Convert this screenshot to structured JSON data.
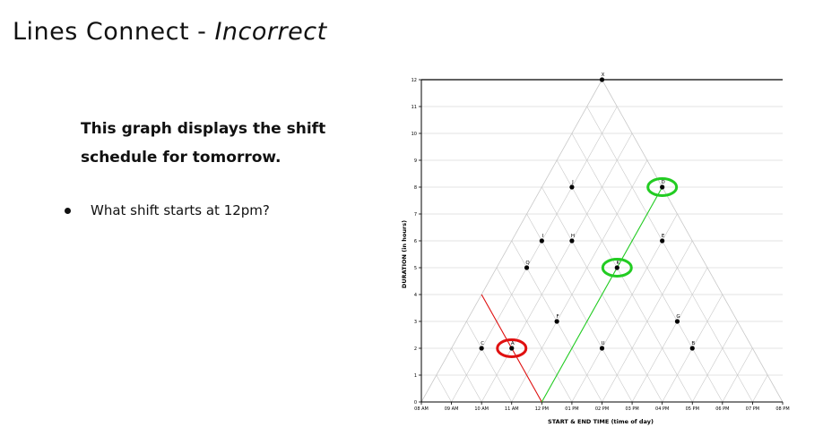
{
  "slide": {
    "title_main": "Lines Connect - ",
    "title_emph": "Incorrect",
    "description": "This graph displays the shift schedule for tomorrow.",
    "bullet": "What shift starts at 12pm?"
  },
  "colors": {
    "highlight_red": "#e01010",
    "highlight_green": "#22cc22",
    "grid": "#c8c8c8",
    "axis": "#000000"
  },
  "chart_data": {
    "type": "scatter",
    "xlabel": "START & END TIME (time of day)",
    "ylabel": "DURATION (in hours)",
    "x_ticks": [
      "08 AM",
      "09 AM",
      "10 AM",
      "11 AM",
      "12 PM",
      "01 PM",
      "02 PM",
      "03 PM",
      "04 PM",
      "05 PM",
      "06 PM",
      "07 PM",
      "08 PM"
    ],
    "y_ticks": [
      "0",
      "1",
      "2",
      "3",
      "4",
      "5",
      "6",
      "7",
      "8",
      "9",
      "10",
      "11",
      "12"
    ],
    "xlim": [
      8,
      20
    ],
    "ylim": [
      0,
      12
    ],
    "points": [
      {
        "label": "X",
        "x": 14,
        "y": 12
      },
      {
        "label": "J",
        "x": 13,
        "y": 8
      },
      {
        "label": "D",
        "x": 16,
        "y": 8
      },
      {
        "label": "I",
        "x": 12,
        "y": 6
      },
      {
        "label": "H",
        "x": 13,
        "y": 6
      },
      {
        "label": "E",
        "x": 16,
        "y": 6
      },
      {
        "label": "Q",
        "x": 11.5,
        "y": 5
      },
      {
        "label": "K",
        "x": 14.5,
        "y": 5
      },
      {
        "label": "F",
        "x": 12.5,
        "y": 3
      },
      {
        "label": "G",
        "x": 16.5,
        "y": 3
      },
      {
        "label": "C",
        "x": 10,
        "y": 2
      },
      {
        "label": "A",
        "x": 11,
        "y": 2
      },
      {
        "label": "U",
        "x": 14,
        "y": 2
      },
      {
        "label": "B",
        "x": 17,
        "y": 2
      }
    ],
    "annotations": {
      "red_line": [
        [
          10,
          4
        ],
        [
          12,
          0
        ]
      ],
      "green_line": [
        [
          12,
          0
        ],
        [
          16,
          8
        ]
      ],
      "red_circle": "A",
      "green_circles": [
        "K",
        "D"
      ]
    }
  }
}
